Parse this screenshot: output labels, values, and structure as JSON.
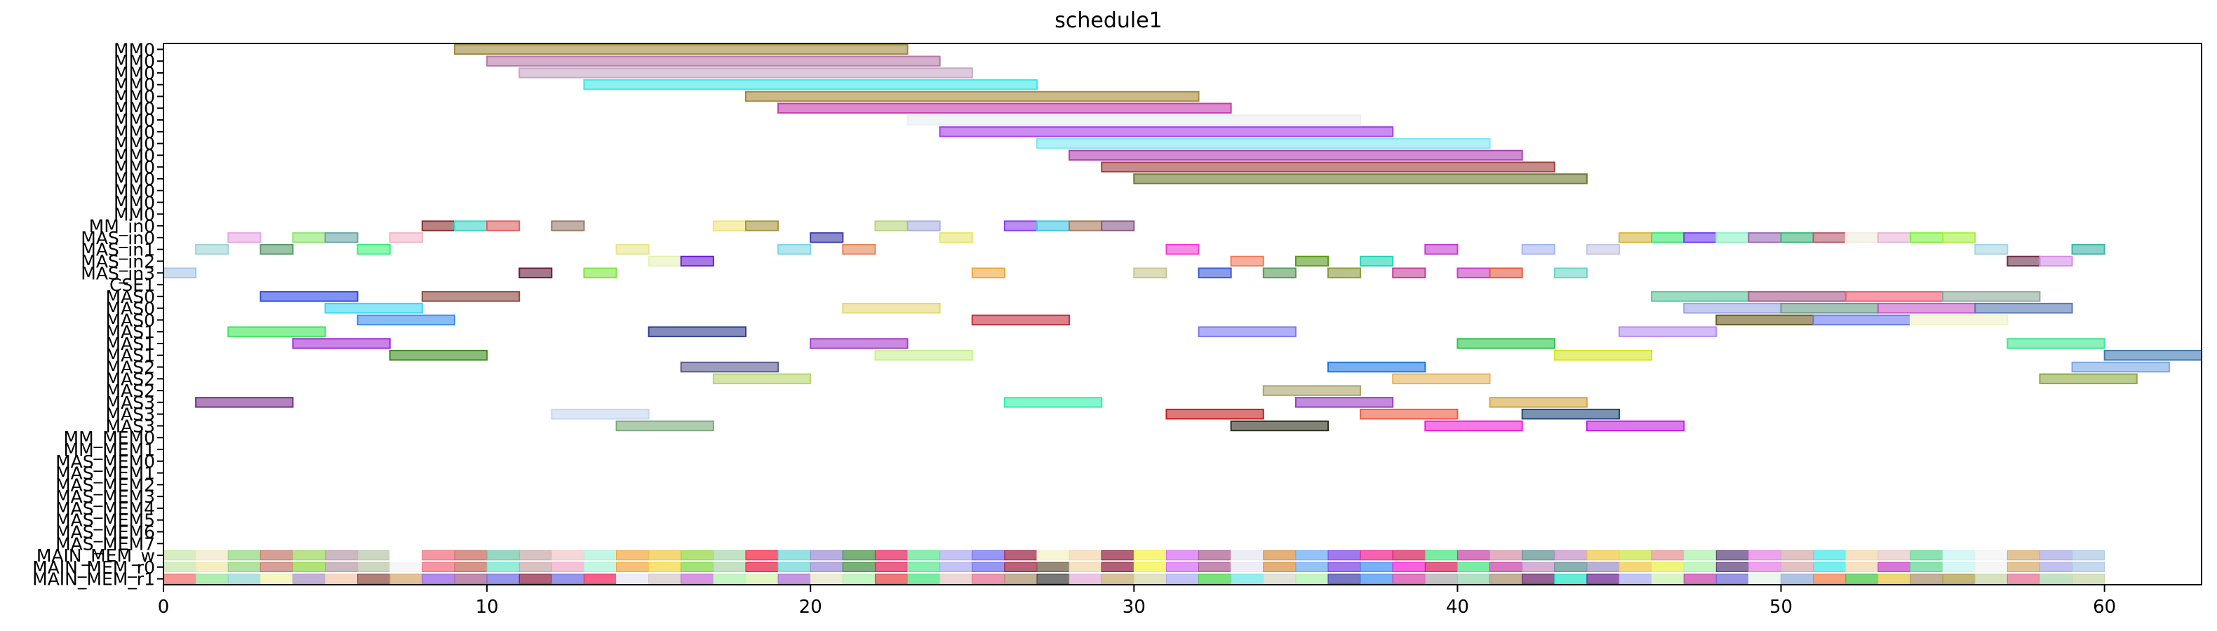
{
  "chart_data": {
    "type": "gantt",
    "title": "schedule1",
    "xlabel": "",
    "ylabel": "",
    "xlim": [
      0,
      63
    ],
    "xticks": [
      0,
      10,
      20,
      30,
      40,
      50,
      60
    ],
    "grid": false,
    "legend": "none",
    "rows": [
      "MM0",
      "MM0",
      "MM0",
      "MM0",
      "MM0",
      "MM0",
      "MM0",
      "MM0",
      "MM0",
      "MM0",
      "MM0",
      "MM0",
      "MM0",
      "MM0",
      "MM0",
      "MM_in0",
      "MAS_in0",
      "MAS_in1",
      "MAS_in2",
      "MAS_in3",
      "CSE1",
      "MAS0",
      "MAS0",
      "MAS0",
      "MAS1",
      "MAS1",
      "MAS1",
      "MAS2",
      "MAS2",
      "MAS2",
      "MAS3",
      "MAS3",
      "MAS3",
      "MM_MEM0",
      "MM_MEM1",
      "MAS_MEM0",
      "MAS_MEM1",
      "MAS_MEM2",
      "MAS_MEM3",
      "MAS_MEM4",
      "MAS_MEM5",
      "MAS_MEM6",
      "MAS_MEM7",
      "MAIN_MEM_w",
      "MAIN_MEM_r0",
      "MAIN_MEM_r1"
    ],
    "tasks": [
      {
        "row": 0,
        "start": 9,
        "end": 23,
        "color": "#9e8a3e"
      },
      {
        "row": 1,
        "start": 10,
        "end": 24,
        "color": "#b57aa8"
      },
      {
        "row": 2,
        "start": 11,
        "end": 25,
        "color": "#c7a8c7"
      },
      {
        "row": 3,
        "start": 13,
        "end": 27,
        "color": "#3fe6e6"
      },
      {
        "row": 4,
        "start": 18,
        "end": 32,
        "color": "#a88a3a"
      },
      {
        "row": 5,
        "start": 19,
        "end": 33,
        "color": "#c43fae"
      },
      {
        "row": 6,
        "start": 23,
        "end": 37,
        "color": "#e8eef2"
      },
      {
        "row": 7,
        "start": 24,
        "end": 38,
        "color": "#a63fe6"
      },
      {
        "row": 8,
        "start": 27,
        "end": 41,
        "color": "#7fe6f2"
      },
      {
        "row": 9,
        "start": 28,
        "end": 42,
        "color": "#b03fb0"
      },
      {
        "row": 10,
        "start": 29,
        "end": 43,
        "color": "#a0403f"
      },
      {
        "row": 11,
        "start": 30,
        "end": 44,
        "color": "#6e7a2e"
      },
      {
        "row": 15,
        "start": 8,
        "end": 9,
        "color": "#8a2e2e"
      },
      {
        "row": 15,
        "start": 9,
        "end": 10,
        "color": "#3fd6c6"
      },
      {
        "row": 15,
        "start": 10,
        "end": 11,
        "color": "#e06060"
      },
      {
        "row": 15,
        "start": 12,
        "end": 13,
        "color": "#9a7a6a"
      },
      {
        "row": 15,
        "start": 17,
        "end": 18,
        "color": "#f2e27a"
      },
      {
        "row": 15,
        "start": 18,
        "end": 19,
        "color": "#a8963e"
      },
      {
        "row": 15,
        "start": 22,
        "end": 23,
        "color": "#b8d67a"
      },
      {
        "row": 15,
        "start": 23,
        "end": 24,
        "color": "#aab0e0"
      },
      {
        "row": 15,
        "start": 26,
        "end": 27,
        "color": "#8e3ef2"
      },
      {
        "row": 15,
        "start": 27,
        "end": 28,
        "color": "#3fc6e6"
      },
      {
        "row": 15,
        "start": 28,
        "end": 29,
        "color": "#a87a5a"
      },
      {
        "row": 15,
        "start": 29,
        "end": 30,
        "color": "#8a5a8a"
      },
      {
        "row": 16,
        "start": 2,
        "end": 3,
        "color": "#e6a6e6"
      },
      {
        "row": 16,
        "start": 4,
        "end": 5,
        "color": "#8ee66e"
      },
      {
        "row": 16,
        "start": 5,
        "end": 6,
        "color": "#6aa6a6"
      },
      {
        "row": 16,
        "start": 7,
        "end": 8,
        "color": "#f2b6c6"
      },
      {
        "row": 16,
        "start": 20,
        "end": 21,
        "color": "#3e3ea8"
      },
      {
        "row": 16,
        "start": 24,
        "end": 25,
        "color": "#e6e66a"
      },
      {
        "row": 16,
        "start": 45,
        "end": 46,
        "color": "#d6b63e"
      },
      {
        "row": 16,
        "start": 46,
        "end": 47,
        "color": "#3ee66e"
      },
      {
        "row": 16,
        "start": 47,
        "end": 48,
        "color": "#6e3ef2"
      },
      {
        "row": 16,
        "start": 48,
        "end": 49,
        "color": "#8ef2c6"
      },
      {
        "row": 16,
        "start": 49,
        "end": 50,
        "color": "#9a6ab6"
      },
      {
        "row": 16,
        "start": 50,
        "end": 51,
        "color": "#3eb67a"
      },
      {
        "row": 16,
        "start": 51,
        "end": 52,
        "color": "#b65a6e"
      },
      {
        "row": 16,
        "start": 52,
        "end": 53,
        "color": "#f2ece0"
      },
      {
        "row": 16,
        "start": 53,
        "end": 54,
        "color": "#e6b6d6"
      },
      {
        "row": 16,
        "start": 54,
        "end": 55,
        "color": "#7ef23e"
      },
      {
        "row": 16,
        "start": 55,
        "end": 56,
        "color": "#a6f23e"
      },
      {
        "row": 17,
        "start": 1,
        "end": 2,
        "color": "#9ed6d6"
      },
      {
        "row": 17,
        "start": 3,
        "end": 4,
        "color": "#5a9a6a"
      },
      {
        "row": 17,
        "start": 6,
        "end": 7,
        "color": "#3ef27a"
      },
      {
        "row": 17,
        "start": 14,
        "end": 15,
        "color": "#e6e68e"
      },
      {
        "row": 17,
        "start": 19,
        "end": 20,
        "color": "#7ed6e6"
      },
      {
        "row": 17,
        "start": 21,
        "end": 22,
        "color": "#e6865a"
      },
      {
        "row": 17,
        "start": 31,
        "end": 32,
        "color": "#f23ed6"
      },
      {
        "row": 17,
        "start": 39,
        "end": 40,
        "color": "#c63ed6"
      },
      {
        "row": 17,
        "start": 42,
        "end": 43,
        "color": "#a6b6f2"
      },
      {
        "row": 17,
        "start": 44,
        "end": 45,
        "color": "#c6c6e6"
      },
      {
        "row": 17,
        "start": 56,
        "end": 57,
        "color": "#a6d6e6"
      },
      {
        "row": 17,
        "start": 59,
        "end": 60,
        "color": "#3eb6a6"
      },
      {
        "row": 18,
        "start": 15,
        "end": 16,
        "color": "#e6f2b6"
      },
      {
        "row": 18,
        "start": 16,
        "end": 17,
        "color": "#6a1ed6"
      },
      {
        "row": 18,
        "start": 33,
        "end": 34,
        "color": "#f27a5a"
      },
      {
        "row": 18,
        "start": 35,
        "end": 36,
        "color": "#5a9a1e"
      },
      {
        "row": 18,
        "start": 37,
        "end": 38,
        "color": "#1ed6b6"
      },
      {
        "row": 18,
        "start": 57,
        "end": 58,
        "color": "#6a2e4a"
      },
      {
        "row": 18,
        "start": 58,
        "end": 59,
        "color": "#d68ee6"
      },
      {
        "row": 19,
        "start": 0,
        "end": 1,
        "color": "#a6c6e6"
      },
      {
        "row": 19,
        "start": 11,
        "end": 12,
        "color": "#6a1e3e"
      },
      {
        "row": 19,
        "start": 13,
        "end": 14,
        "color": "#7ee63e"
      },
      {
        "row": 19,
        "start": 25,
        "end": 26,
        "color": "#f2a63e"
      },
      {
        "row": 19,
        "start": 30,
        "end": 31,
        "color": "#c6c68e"
      },
      {
        "row": 19,
        "start": 32,
        "end": 33,
        "color": "#3e5ad6"
      },
      {
        "row": 19,
        "start": 34,
        "end": 35,
        "color": "#5a9a5a"
      },
      {
        "row": 19,
        "start": 36,
        "end": 37,
        "color": "#8e9a3e"
      },
      {
        "row": 19,
        "start": 38,
        "end": 39,
        "color": "#c63e9a"
      },
      {
        "row": 19,
        "start": 40,
        "end": 41,
        "color": "#c63ec6"
      },
      {
        "row": 19,
        "start": 41,
        "end": 42,
        "color": "#e65a3e"
      },
      {
        "row": 19,
        "start": 43,
        "end": 44,
        "color": "#6ad6c6"
      },
      {
        "row": 21,
        "start": 3,
        "end": 6,
        "color": "#2e4ae6"
      },
      {
        "row": 21,
        "start": 8,
        "end": 11,
        "color": "#8e4a3e"
      },
      {
        "row": 21,
        "start": 46,
        "end": 49,
        "color": "#5ac69a"
      },
      {
        "row": 21,
        "start": 49,
        "end": 52,
        "color": "#a65a8a"
      },
      {
        "row": 21,
        "start": 52,
        "end": 55,
        "color": "#f25a6e"
      },
      {
        "row": 21,
        "start": 55,
        "end": 58,
        "color": "#8eaa9a"
      },
      {
        "row": 22,
        "start": 5,
        "end": 8,
        "color": "#3ed6f2"
      },
      {
        "row": 22,
        "start": 21,
        "end": 24,
        "color": "#e6d67a"
      },
      {
        "row": 22,
        "start": 47,
        "end": 50,
        "color": "#9aa6e6"
      },
      {
        "row": 22,
        "start": 50,
        "end": 53,
        "color": "#6a9a8a"
      },
      {
        "row": 22,
        "start": 53,
        "end": 56,
        "color": "#c65ac6"
      },
      {
        "row": 22,
        "start": 56,
        "end": 59,
        "color": "#5a7ab6"
      },
      {
        "row": 23,
        "start": 6,
        "end": 9,
        "color": "#3e8ef2"
      },
      {
        "row": 23,
        "start": 25,
        "end": 28,
        "color": "#c62e3e"
      },
      {
        "row": 23,
        "start": 48,
        "end": 51,
        "color": "#6a5a1e"
      },
      {
        "row": 23,
        "start": 51,
        "end": 54,
        "color": "#6a7af2"
      },
      {
        "row": 23,
        "start": 54,
        "end": 57,
        "color": "#f2f2c6"
      },
      {
        "row": 24,
        "start": 2,
        "end": 5,
        "color": "#3ee65a"
      },
      {
        "row": 24,
        "start": 15,
        "end": 18,
        "color": "#2e3e8e"
      },
      {
        "row": 24,
        "start": 32,
        "end": 35,
        "color": "#7a7af2"
      },
      {
        "row": 24,
        "start": 45,
        "end": 48,
        "color": "#b68ef2"
      },
      {
        "row": 25,
        "start": 4,
        "end": 7,
        "color": "#a62ed6"
      },
      {
        "row": 25,
        "start": 20,
        "end": 23,
        "color": "#a63ec6"
      },
      {
        "row": 25,
        "start": 40,
        "end": 43,
        "color": "#2ec64a"
      },
      {
        "row": 25,
        "start": 57,
        "end": 60,
        "color": "#3ee68e"
      },
      {
        "row": 26,
        "start": 7,
        "end": 10,
        "color": "#3e8e1e"
      },
      {
        "row": 26,
        "start": 22,
        "end": 25,
        "color": "#c6f28e"
      },
      {
        "row": 26,
        "start": 43,
        "end": 46,
        "color": "#d6e61e"
      },
      {
        "row": 26,
        "start": 60,
        "end": 63,
        "color": "#3e7ab6"
      },
      {
        "row": 27,
        "start": 16,
        "end": 19,
        "color": "#5a5a8e"
      },
      {
        "row": 27,
        "start": 36,
        "end": 39,
        "color": "#1e7ae6"
      },
      {
        "row": 27,
        "start": 59,
        "end": 62,
        "color": "#7aa6e6"
      },
      {
        "row": 28,
        "start": 17,
        "end": 20,
        "color": "#b6d66a"
      },
      {
        "row": 28,
        "start": 38,
        "end": 41,
        "color": "#e6b65a"
      },
      {
        "row": 28,
        "start": 58,
        "end": 61,
        "color": "#8eaa3e"
      },
      {
        "row": 29,
        "start": 34,
        "end": 37,
        "color": "#aaa66a"
      },
      {
        "row": 30,
        "start": 1,
        "end": 4,
        "color": "#7a2e8e"
      },
      {
        "row": 30,
        "start": 26,
        "end": 29,
        "color": "#2ef2aa"
      },
      {
        "row": 30,
        "start": 35,
        "end": 38,
        "color": "#9a3ec6"
      },
      {
        "row": 30,
        "start": 41,
        "end": 44,
        "color": "#d6a63e"
      },
      {
        "row": 31,
        "start": 12,
        "end": 15,
        "color": "#c6d6f2"
      },
      {
        "row": 31,
        "start": 31,
        "end": 34,
        "color": "#c61e1e"
      },
      {
        "row": 31,
        "start": 37,
        "end": 40,
        "color": "#f25a3e"
      },
      {
        "row": 31,
        "start": 42,
        "end": 45,
        "color": "#1e4a7a"
      },
      {
        "row": 32,
        "start": 14,
        "end": 17,
        "color": "#7aaa7a"
      },
      {
        "row": 32,
        "start": 33,
        "end": 36,
        "color": "#2e2e1e"
      },
      {
        "row": 32,
        "start": 39,
        "end": 42,
        "color": "#f21ed6"
      },
      {
        "row": 32,
        "start": 44,
        "end": 47,
        "color": "#c61ee6"
      }
    ],
    "mem_rows": {
      "MAIN_MEM_w": {
        "row": 43,
        "start": 0,
        "count": 60,
        "colors": [
          "#c6e6a6",
          "#f2e6c6",
          "#8ed67a",
          "#c6766a",
          "#9ad65a",
          "#b69aa6",
          "#b6c6a6",
          "#ffffff",
          "#f26a7a",
          "#c6665a",
          "#6ac6aa",
          "#c6a6a6",
          "#f2c6c6",
          "#aaf2d6",
          "#f2a63e",
          "#f2c63e",
          "#8ed63e",
          "#aad6aa",
          "#f21e3e",
          "#6ad6d6",
          "#9a8ad6",
          "#3e8e3e",
          "#e61e5a",
          "#5ae68e",
          "#aaaaf2",
          "#6a6af2",
          "#9a1e3e",
          "#f2f2c6",
          "#f2d6aa",
          "#8e1e3e",
          "#f2f23e",
          "#d66af2",
          "#aa5a8e",
          "#e6e6f2",
          "#d68e3e",
          "#6aaaf2",
          "#7a3ee6",
          "#f21e8e",
          "#d61e5a",
          "#3ee67a",
          "#c63ea6",
          "#d68ea6",
          "#5a8e8e",
          "#c68ec6",
          "#f2c63e",
          "#c6e63e",
          "#e68e8e",
          "#aaf2aa",
          "#5a3e7a",
          "#e67ae6",
          "#d6a6aa",
          "#3ee6e6",
          "#f2d6a6",
          "#e6c6c6",
          "#5ad68e",
          "#c6f2f2",
          "#f2f2f2",
          "#d6aa6a",
          "#a6a6e6",
          "#aac6e6"
        ]
      },
      "MAIN_MEM_r0": {
        "row": 44,
        "start": 0,
        "count": 60,
        "colors": [
          "#c6e6a6",
          "#f2e6aa",
          "#8ed67a",
          "#c6766a",
          "#8ed63e",
          "#b69aa6",
          "#b6c6a6",
          "#f2f2f2",
          "#f26a7a",
          "#c6665a",
          "#6ae6c6",
          "#c6a6a6",
          "#f2a6c6",
          "#aaf2d6",
          "#f2a63e",
          "#f2d63e",
          "#7ad63e",
          "#aad6aa",
          "#e61e3e",
          "#6ad6d6",
          "#9a8ad6",
          "#3e8e3e",
          "#e61e5a",
          "#5ae68e",
          "#aaaaf2",
          "#6a6af2",
          "#9a1e3e",
          "#6a5a3e",
          "#f2d6aa",
          "#8e1e3e",
          "#f2f23e",
          "#d66af2",
          "#aa5a8e",
          "#e6e6f2",
          "#d68e3e",
          "#6aaaf2",
          "#7a3ee6",
          "#3e8ef2",
          "#f21ed6",
          "#d61e5a",
          "#3ee67a",
          "#c63ea6",
          "#c68ec6",
          "#5a8e8e",
          "#9a8ec6",
          "#f2c63e",
          "#e6f23e",
          "#aaf2aa",
          "#5a3e7a",
          "#e67ae6",
          "#d6a6aa",
          "#3ee6e6",
          "#f2d6a6",
          "#c63ec6",
          "#5ad68e",
          "#c6f2f2",
          "#f2f2f2",
          "#d6aa6a",
          "#a6a6e6",
          "#aac6e6"
        ]
      },
      "MAIN_MEM_r1": {
        "row": 45,
        "start": 0,
        "count": 60,
        "colors": [
          "#f26a6a",
          "#8ee68e",
          "#8ed6d6",
          "#f2f2aa",
          "#aa8ec6",
          "#f2c6a6",
          "#8e4a3e",
          "#d6a66a",
          "#8e5ae6",
          "#a65a8e",
          "#6a6ae6",
          "#8e1e3e",
          "#6a6ae6",
          "#f21e5a",
          "#e6e6f2",
          "#d6c6c6",
          "#c66ad6",
          "#aaf2aa",
          "#d6f2a6",
          "#aa6ad6",
          "#e6e6c6",
          "#aaf2aa",
          "#e63e3e",
          "#3ee67a",
          "#e6c6c6",
          "#e66a8e",
          "#aa8e6a",
          "#3e3e3e",
          "#e6aad6",
          "#c6aa6a",
          "#d6d6aa",
          "#aaaaf2",
          "#3ed63e",
          "#6ae6e6",
          "#d6d6c6",
          "#aaf2aa",
          "#3e3eaa",
          "#3e8ef2",
          "#d63eaa",
          "#aaaaaa",
          "#8ed6aa",
          "#aa8e6a",
          "#6a1e6a",
          "#1ee6c6",
          "#6a1e8e",
          "#aaaaf2",
          "#c6f2aa",
          "#c63eaa",
          "#6a6ad6",
          "#e6f2e6",
          "#8eaad6",
          "#f27a3e",
          "#3ec63e",
          "#e6c63e",
          "#aa8e6a",
          "#aa9a3e",
          "#c6d6a6",
          "#e66a8e",
          "#aad6aa",
          "#c6d6a6"
        ]
      }
    }
  }
}
